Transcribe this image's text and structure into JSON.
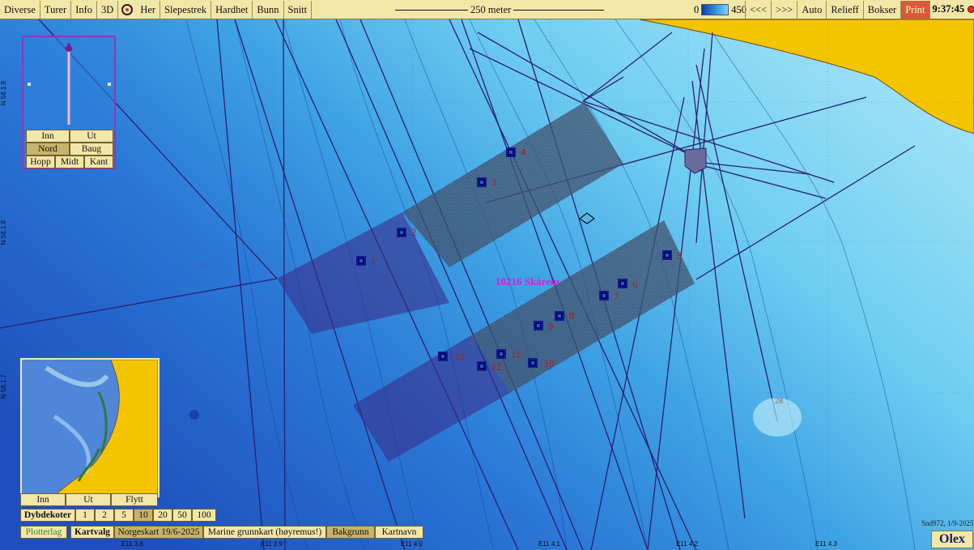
{
  "toolbar": {
    "items": [
      "Diverse",
      "Turer",
      "Info",
      "3D",
      "Her",
      "Slepestrek",
      "Hardhet",
      "Bunn",
      "Snitt"
    ],
    "scale_label": "250 meter",
    "depth_min": "0",
    "depth_max": "450",
    "right_items": [
      "<<<",
      ">>>",
      "Auto",
      "Relieff",
      "Bokser"
    ],
    "print_label": "Print",
    "time": "9:37:45"
  },
  "nav_panel": {
    "zoom_in": "Inn",
    "zoom_out": "Ut",
    "north": "Nord",
    "bow": "Baug",
    "jump": "Hopp",
    "center": "Midt",
    "edge": "Kant"
  },
  "minimap": {
    "zoom_in": "Inn",
    "zoom_out": "Ut",
    "move": "Flytt"
  },
  "depth_contours": {
    "label": "Dybdekoter",
    "options": [
      "1",
      "2",
      "5",
      "10",
      "20",
      "50",
      "100"
    ],
    "selected": "10"
  },
  "bottom_bar": {
    "overlay_label": "Plotterlag",
    "chart_label": "Kartvalg",
    "chart_options": [
      "Norgeskart 19/6-2025",
      "Marine grunnkart (høyremus!)",
      "Bakgrunn",
      "Kartnavn"
    ],
    "selected_chart": "Norgeskart 19/6-2025"
  },
  "map": {
    "site_name": "10216 Skårem",
    "stations": [
      "1",
      "2",
      "3",
      "4",
      "5",
      "6",
      "7",
      "8",
      "9",
      "10",
      "11",
      "12",
      "13"
    ],
    "extra_marker": "28",
    "depth_marker": "195",
    "lat_labels": [
      "N 58.1.9",
      "N 58.1.8",
      "N 58.1.7"
    ],
    "lon_labels": [
      "E11 3.8",
      "E11 3.9",
      "E11 4.0",
      "E11 4.1",
      "E11 4.2",
      "E11 4.3"
    ]
  },
  "footer": {
    "version": "Snd972, 1/9-2025",
    "brand": "Olex"
  },
  "colors": {
    "panel_bg": "#f3e7a8",
    "land": "#f5c400",
    "deep": "#1e5fc8",
    "shallow": "#9fe3f6",
    "site_name": "#e418d8",
    "station_label": "#b51a1a"
  }
}
